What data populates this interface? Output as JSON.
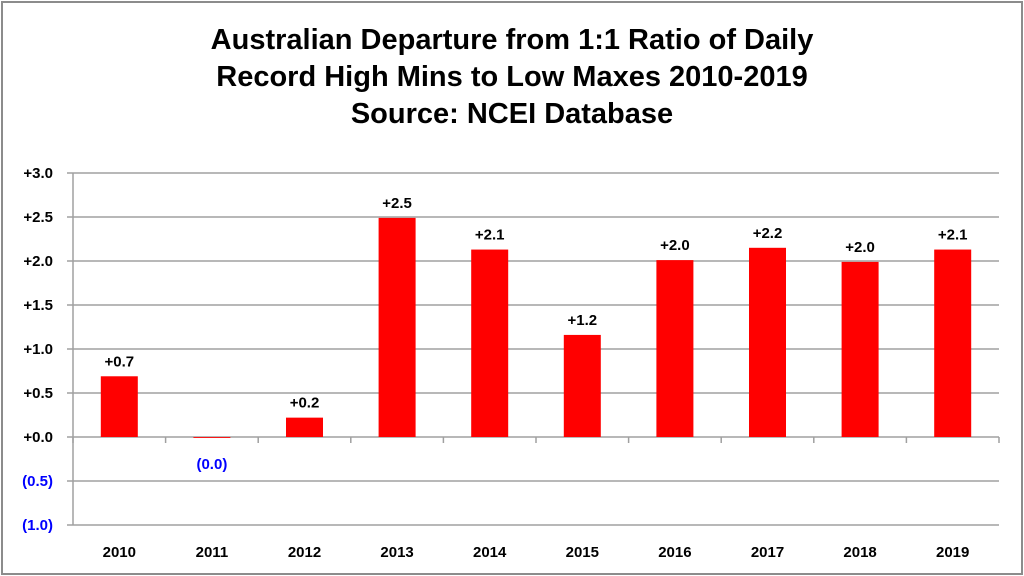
{
  "chart_data": {
    "type": "bar",
    "title_lines": [
      "Australian Departure from 1:1 Ratio of Daily",
      "Record High Mins to Low Maxes 2010-2019",
      "Source: NCEI Database"
    ],
    "categories": [
      "2010",
      "2011",
      "2012",
      "2013",
      "2014",
      "2015",
      "2016",
      "2017",
      "2018",
      "2019"
    ],
    "values": [
      0.69,
      -0.01,
      0.22,
      2.49,
      2.13,
      1.16,
      2.01,
      2.15,
      1.99,
      2.13
    ],
    "data_labels": [
      "+0.7",
      "(0.0)",
      "+0.2",
      "+2.5",
      "+2.1",
      "+1.2",
      "+2.0",
      "+2.2",
      "+2.0",
      "+2.1"
    ],
    "xlabel": "",
    "ylabel": "",
    "ylim": [
      -1.0,
      3.0
    ],
    "yticks": [
      3.0,
      2.5,
      2.0,
      1.5,
      1.0,
      0.5,
      0.0,
      -0.5,
      -1.0
    ],
    "ytick_labels": [
      "+3.0",
      "+2.5",
      "+2.0",
      "+1.5",
      "+1.0",
      "+0.5",
      "+0.0",
      "(0.5)",
      "(1.0)"
    ],
    "grid": true,
    "legend": "none",
    "colors": {
      "bar": "#ff0000",
      "positive_label": "#000000",
      "negative_label": "#0000ff",
      "grid": "#a0a0a0"
    }
  }
}
